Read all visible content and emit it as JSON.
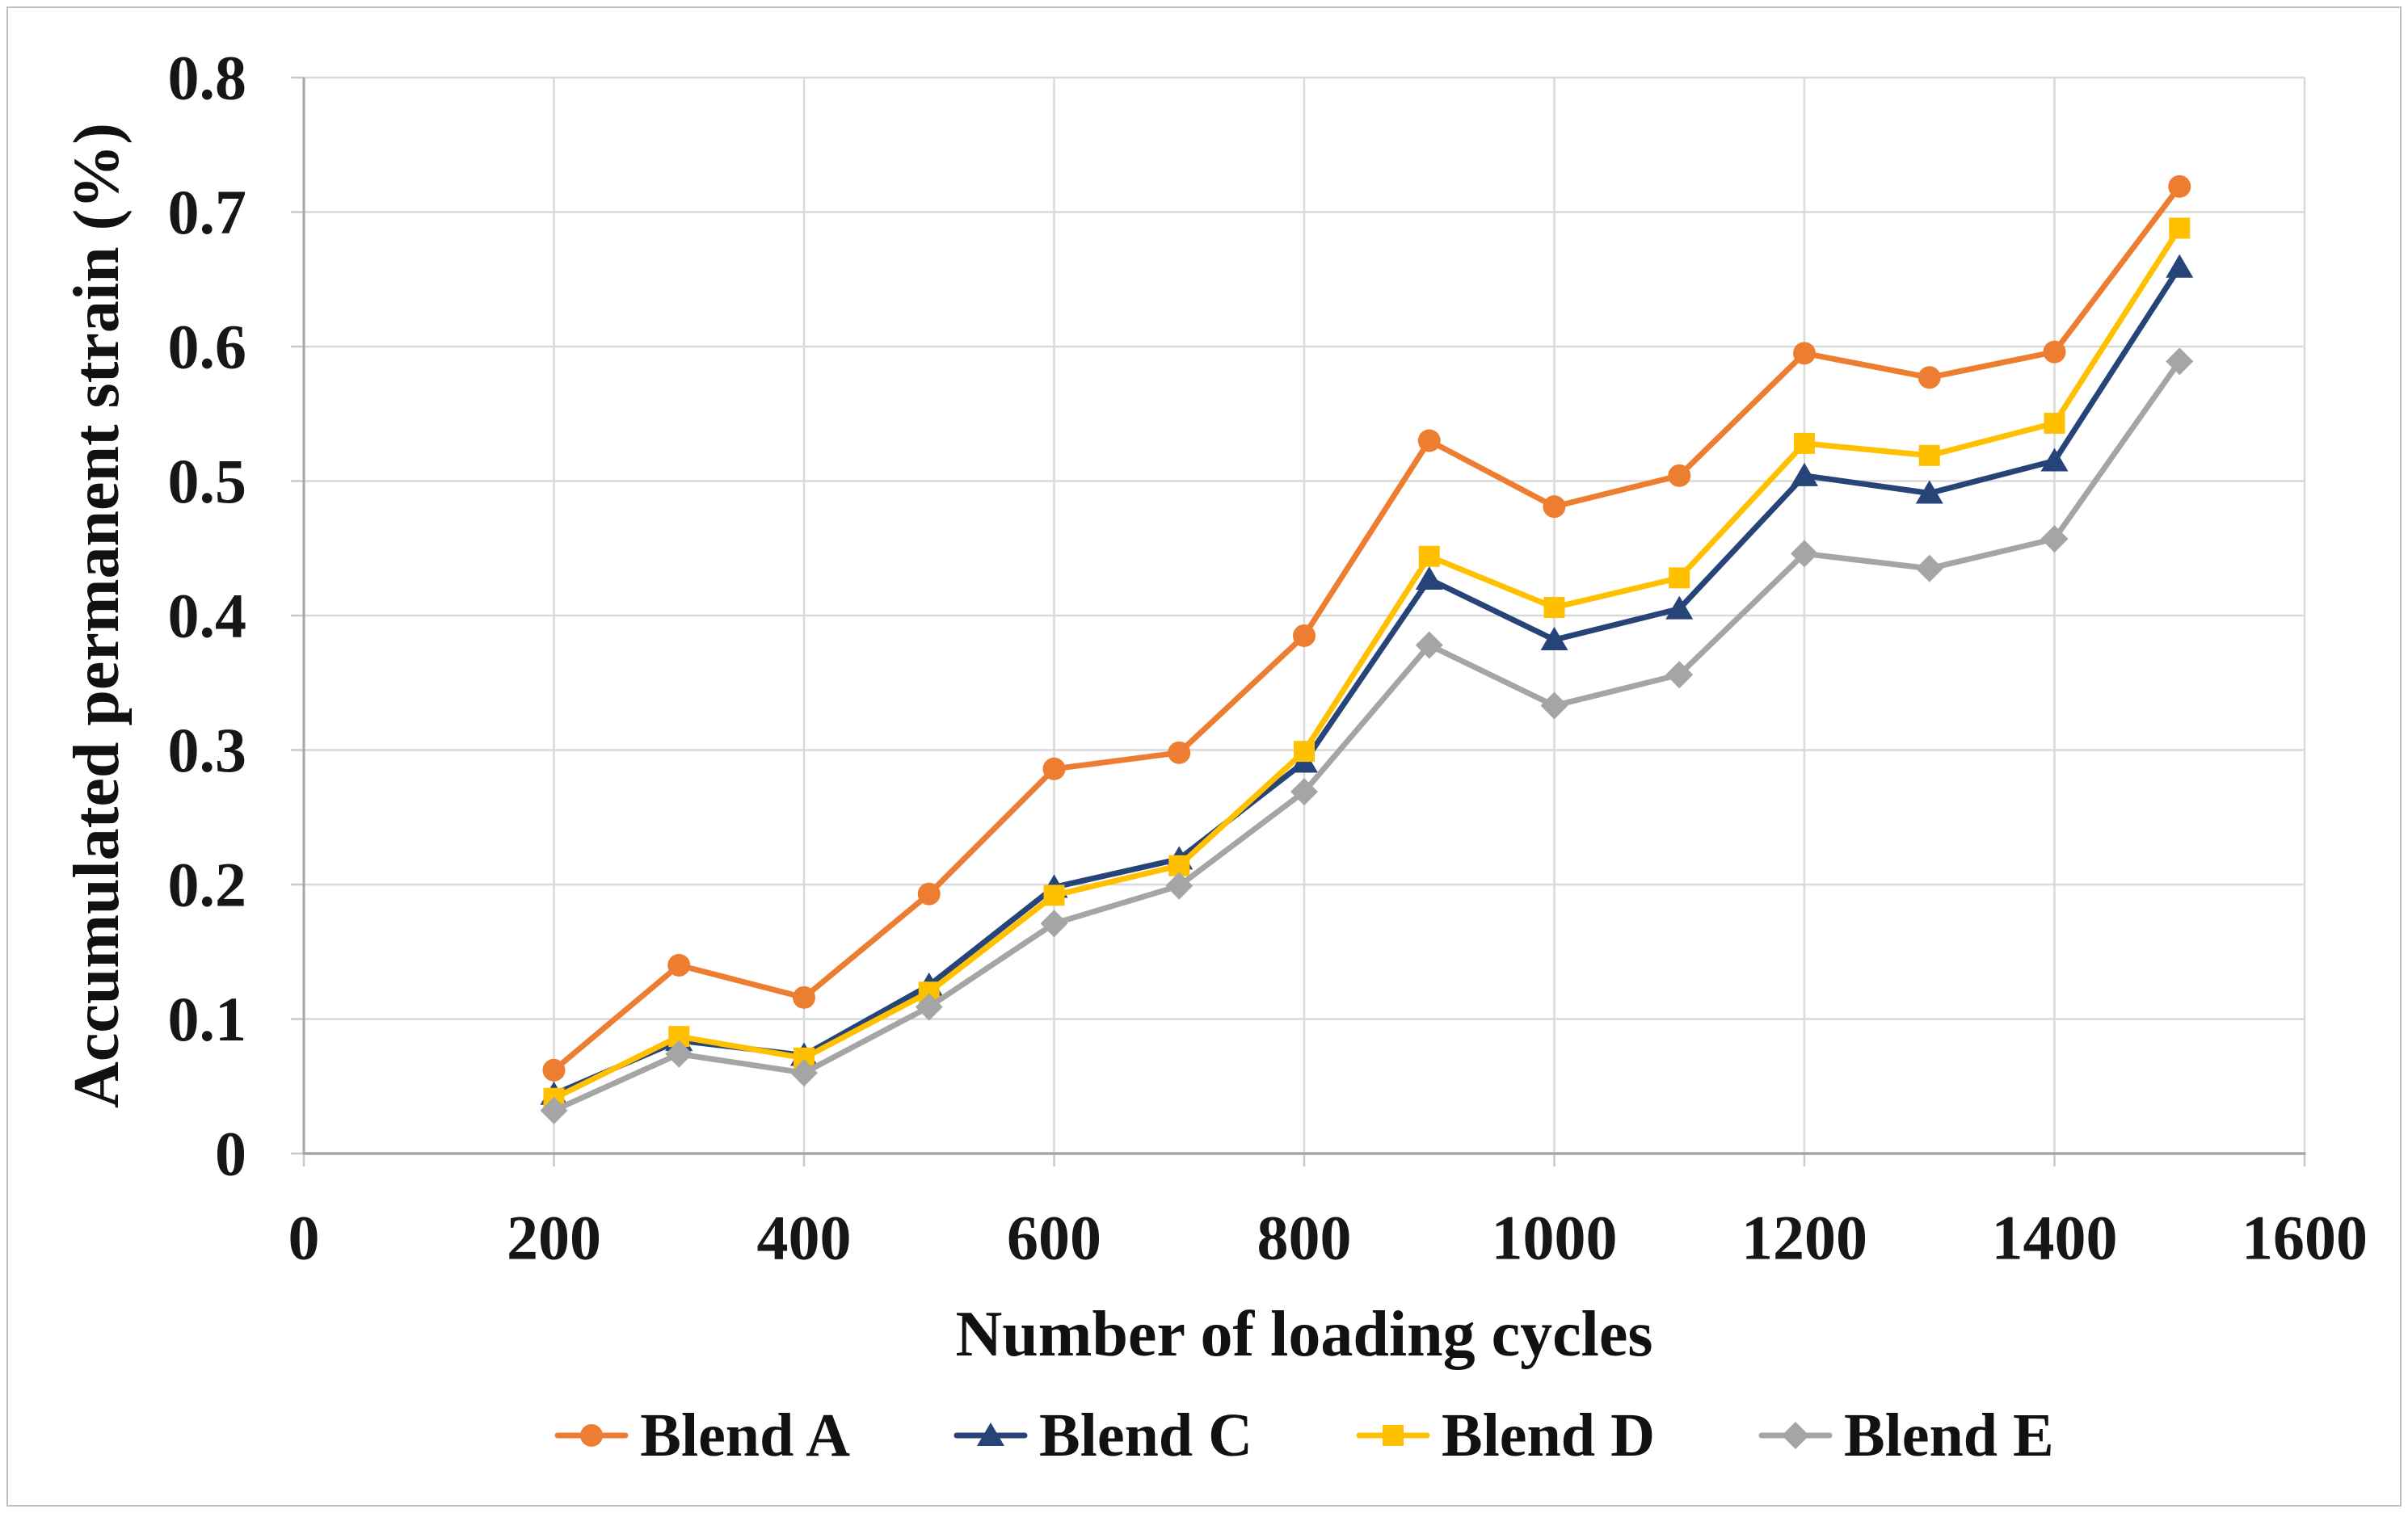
{
  "figure": {
    "background_color": "#FFFFFF",
    "border_color": "#BFBFBF"
  },
  "chart_data": {
    "type": "line",
    "title": "",
    "xlabel": "Number of loading cycles",
    "ylabel": "Accumulated permanent strain (%)",
    "xlim": [
      0,
      1600
    ],
    "ylim": [
      0,
      0.8
    ],
    "grid": true,
    "legend_position": "bottom",
    "gridline_color": "#D9D9D9",
    "axis_color": "#A6A6A6",
    "tick_color": "#C9C9C9",
    "x_ticks": [
      0,
      200,
      400,
      600,
      800,
      1000,
      1200,
      1400,
      1600
    ],
    "y_ticks": [
      "0",
      "0.1",
      "0.2",
      "0.3",
      "0.4",
      "0.5",
      "0.6",
      "0.7",
      "0.8"
    ],
    "x": [
      200,
      300,
      400,
      500,
      600,
      700,
      800,
      900,
      1000,
      1100,
      1200,
      1300,
      1400,
      1500
    ],
    "series": [
      {
        "name": "Blend A",
        "color": "#ED7D31",
        "marker": "circle",
        "values": [
          0.062,
          0.14,
          0.116,
          0.193,
          0.286,
          0.298,
          0.385,
          0.53,
          0.481,
          0.504,
          0.595,
          0.577,
          0.596,
          0.719
        ]
      },
      {
        "name": "Blend C",
        "color": "#264478",
        "marker": "triangle",
        "values": [
          0.044,
          0.084,
          0.073,
          0.125,
          0.198,
          0.219,
          0.291,
          0.427,
          0.382,
          0.405,
          0.504,
          0.491,
          0.515,
          0.659
        ]
      },
      {
        "name": "Blend D",
        "color": "#FFC000",
        "marker": "square",
        "values": [
          0.041,
          0.087,
          0.071,
          0.12,
          0.192,
          0.214,
          0.299,
          0.444,
          0.406,
          0.428,
          0.528,
          0.519,
          0.543,
          0.688
        ]
      },
      {
        "name": "Blend E",
        "color": "#A5A5A5",
        "marker": "diamond",
        "values": [
          0.032,
          0.074,
          0.06,
          0.109,
          0.171,
          0.199,
          0.269,
          0.378,
          0.333,
          0.356,
          0.446,
          0.435,
          0.457,
          0.589
        ]
      }
    ]
  }
}
